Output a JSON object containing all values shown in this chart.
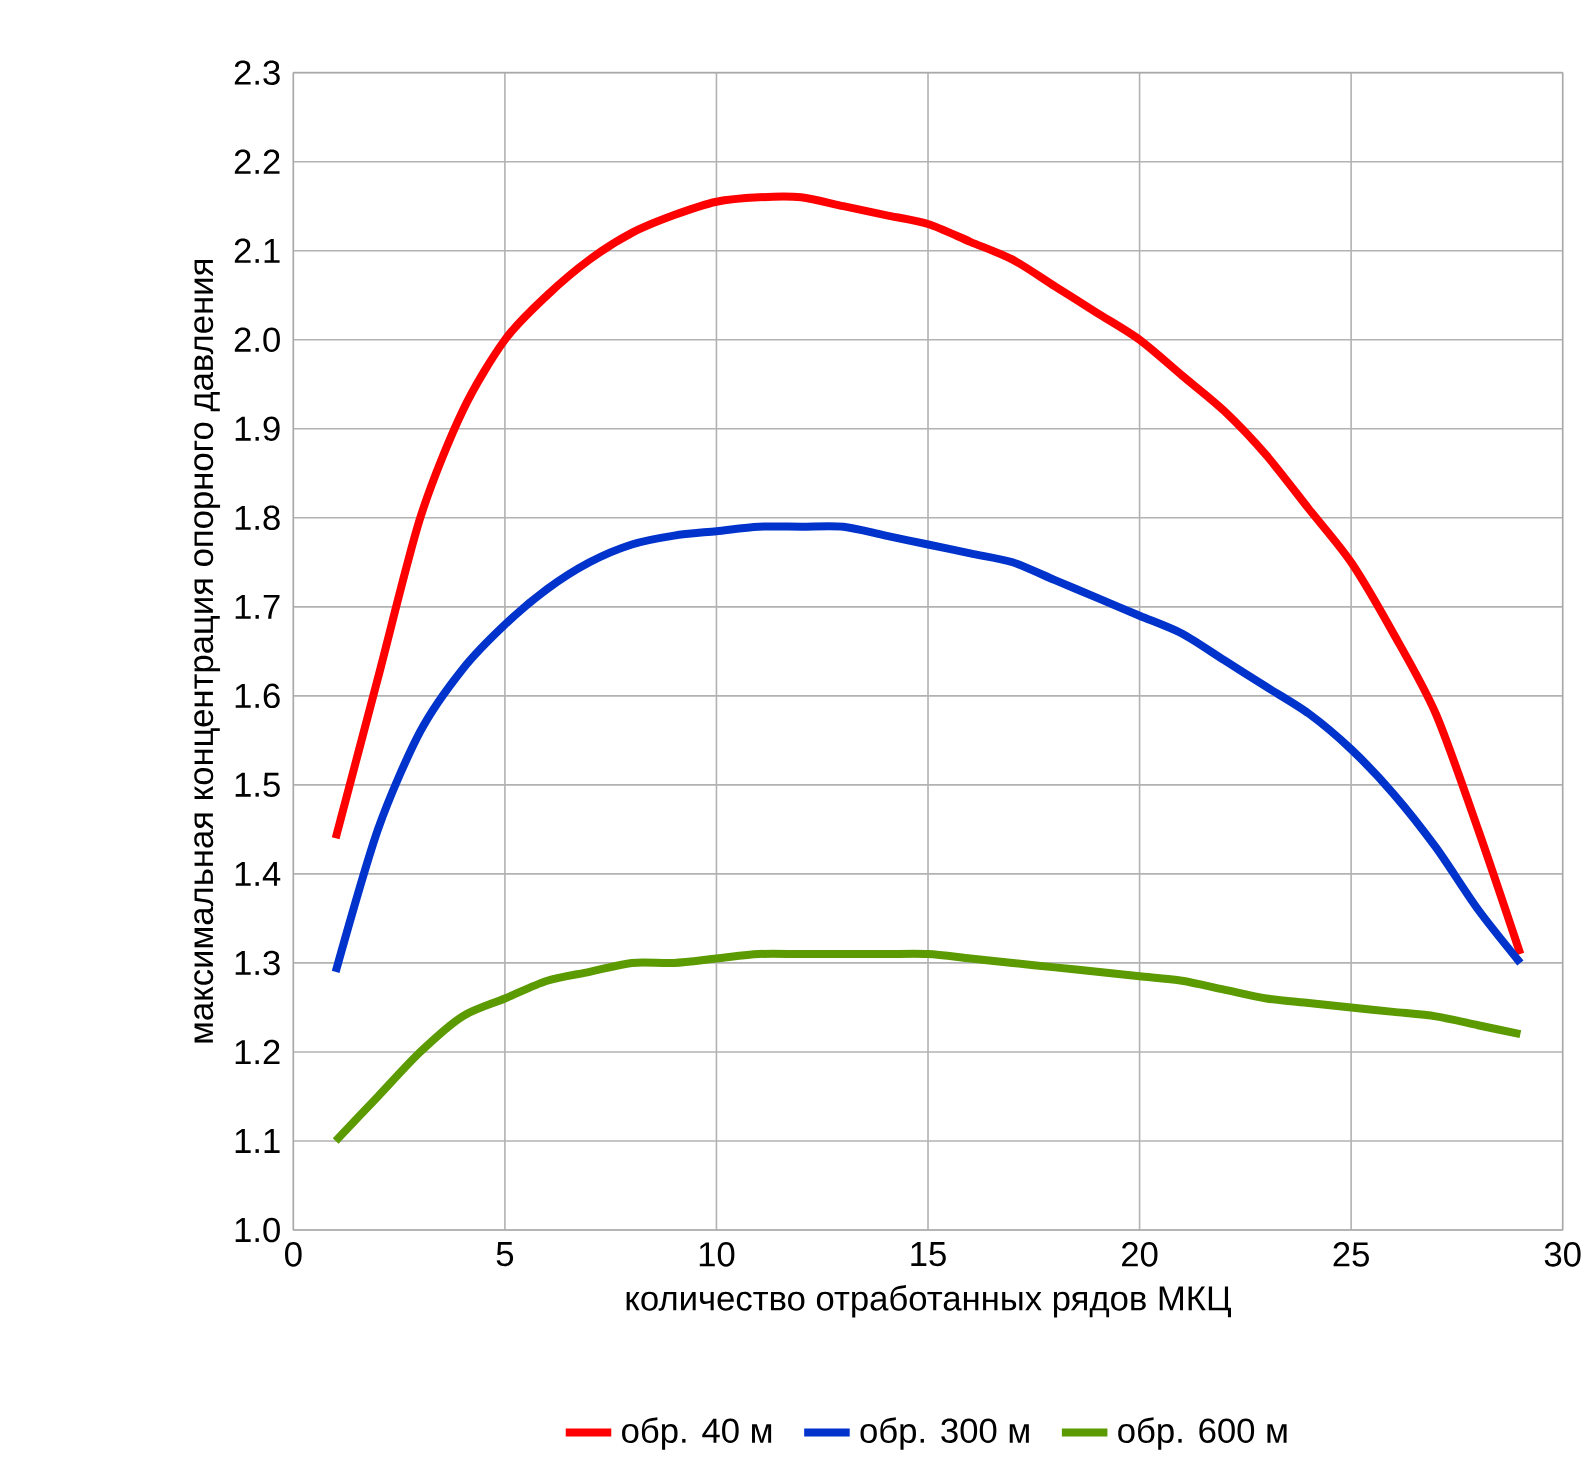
{
  "chart_data": {
    "type": "line",
    "xlabel": "количество отработанных рядов МКЦ",
    "ylabel": "максимальная концентрация опорного давления",
    "x": [
      1,
      2,
      3,
      4,
      5,
      6,
      7,
      8,
      9,
      10,
      11,
      12,
      13,
      14,
      15,
      16,
      17,
      18,
      19,
      20,
      21,
      22,
      23,
      24,
      25,
      26,
      27,
      28,
      29
    ],
    "series": [
      {
        "name": "обр. 40 м",
        "color": "#ff0000",
        "values": [
          1.44,
          1.62,
          1.8,
          1.92,
          2.0,
          2.05,
          2.09,
          2.12,
          2.14,
          2.155,
          2.16,
          2.16,
          2.15,
          2.14,
          2.13,
          2.11,
          2.09,
          2.06,
          2.03,
          2.0,
          1.96,
          1.92,
          1.87,
          1.81,
          1.75,
          1.67,
          1.58,
          1.45,
          1.31
        ]
      },
      {
        "name": "обр. 300 м",
        "color": "#0033cc",
        "values": [
          1.29,
          1.45,
          1.56,
          1.63,
          1.68,
          1.72,
          1.75,
          1.77,
          1.78,
          1.785,
          1.79,
          1.79,
          1.79,
          1.78,
          1.77,
          1.76,
          1.75,
          1.73,
          1.71,
          1.69,
          1.67,
          1.64,
          1.61,
          1.58,
          1.54,
          1.49,
          1.43,
          1.36,
          1.3
        ]
      },
      {
        "name": "обр. 600 м",
        "color": "#5b9a00",
        "values": [
          1.1,
          1.15,
          1.2,
          1.24,
          1.26,
          1.28,
          1.29,
          1.3,
          1.3,
          1.305,
          1.31,
          1.31,
          1.31,
          1.31,
          1.31,
          1.305,
          1.3,
          1.295,
          1.29,
          1.285,
          1.28,
          1.27,
          1.26,
          1.255,
          1.25,
          1.245,
          1.24,
          1.23,
          1.22
        ]
      }
    ],
    "xlim": [
      0,
      30
    ],
    "xticks": [
      0,
      5,
      10,
      15,
      20,
      25,
      30
    ],
    "ylim": [
      1.0,
      2.3
    ],
    "yticks": [
      {
        "value": 1.0,
        "label": "1.0"
      },
      1.1,
      1.2,
      1.3,
      1.4,
      1.5,
      1.6,
      1.7,
      1.8,
      1.9,
      {
        "value": 2.0,
        "label": "2.0"
      },
      2.1,
      2.2,
      2.3
    ],
    "grid": true,
    "legend": "bottom",
    "marker": "none",
    "line_style": "solid"
  }
}
